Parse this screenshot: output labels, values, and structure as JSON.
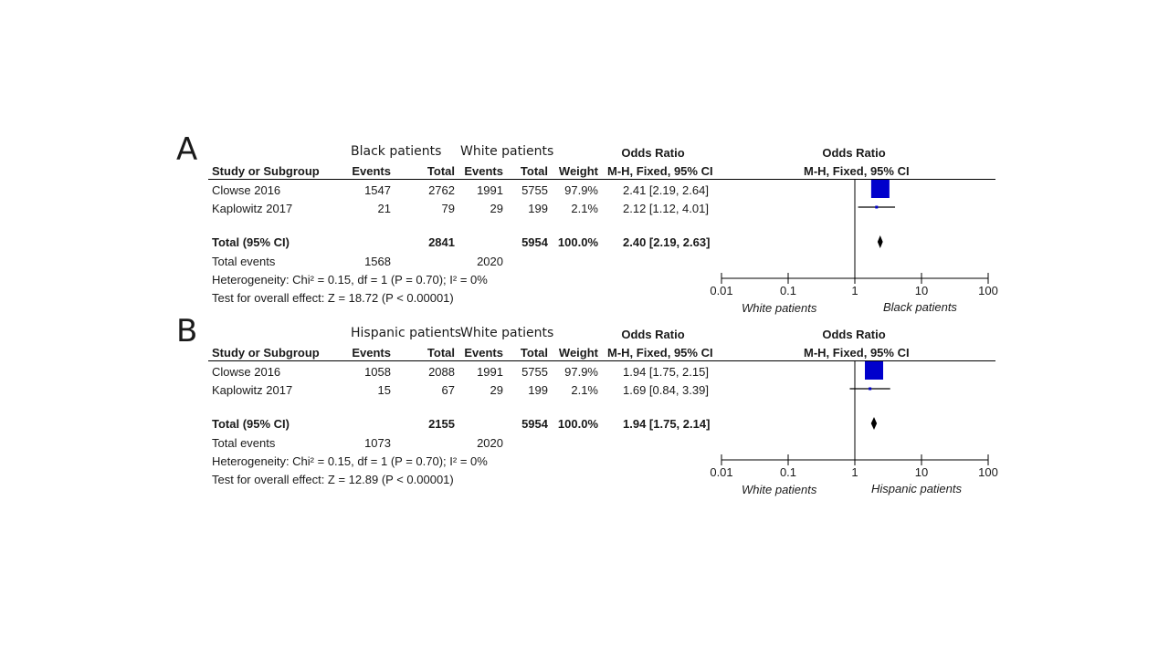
{
  "chart_data": [
    {
      "type": "forest",
      "panel_letter": "A",
      "group1_label": "Black patients",
      "group2_label": "White patients",
      "headers": {
        "study": "Study or Subgroup",
        "events1": "Events",
        "total1": "Total",
        "events2": "Events",
        "total2": "Total",
        "weight": "Weight",
        "or_title": "Odds Ratio",
        "or_method": "M-H, Fixed, 95% CI",
        "plot_title": "Odds Ratio",
        "plot_method": "M-H, Fixed, 95% CI"
      },
      "studies": [
        {
          "name": "Clowse 2016",
          "events1": "1547",
          "total1": "2762",
          "events2": "1991",
          "total2": "5755",
          "weight": "97.9%",
          "ci_text": "2.41 [2.19, 2.64]",
          "or": 2.41,
          "lo": 2.19,
          "hi": 2.64,
          "w": 97.9
        },
        {
          "name": "Kaplowitz 2017",
          "events1": "21",
          "total1": "79",
          "events2": "29",
          "total2": "199",
          "weight": "2.1%",
          "ci_text": "2.12 [1.12, 4.01]",
          "or": 2.12,
          "lo": 1.12,
          "hi": 4.01,
          "w": 2.1
        }
      ],
      "total": {
        "name": "Total (95% CI)",
        "total1": "2841",
        "total2": "5954",
        "weight": "100.0%",
        "ci_text": "2.40 [2.19, 2.63]",
        "or": 2.4,
        "lo": 2.19,
        "hi": 2.63
      },
      "total_events": {
        "label": "Total events",
        "events1": "1568",
        "events2": "2020"
      },
      "heterogeneity": "Heterogeneity: Chi² = 0.15, df = 1 (P = 0.70); I² = 0%",
      "overall_effect": "Test for overall effect: Z = 18.72 (P < 0.00001)",
      "axis": {
        "scale": "log",
        "ticks": [
          "0.01",
          "0.1",
          "1",
          "10",
          "100"
        ],
        "tick_values": [
          0.01,
          0.1,
          1,
          10,
          100
        ],
        "xlim": [
          0.01,
          100
        ]
      },
      "favours_left": "White patients",
      "favours_right": "Black patients"
    },
    {
      "type": "forest",
      "panel_letter": "B",
      "group1_label": "Hispanic patients",
      "group2_label": "White patients",
      "headers": {
        "study": "Study or Subgroup",
        "events1": "Events",
        "total1": "Total",
        "events2": "Events",
        "total2": "Total",
        "weight": "Weight",
        "or_title": "Odds Ratio",
        "or_method": "M-H, Fixed, 95% CI",
        "plot_title": "Odds Ratio",
        "plot_method": "M-H, Fixed, 95% CI"
      },
      "studies": [
        {
          "name": "Clowse 2016",
          "events1": "1058",
          "total1": "2088",
          "events2": "1991",
          "total2": "5755",
          "weight": "97.9%",
          "ci_text": "1.94 [1.75, 2.15]",
          "or": 1.94,
          "lo": 1.75,
          "hi": 2.15,
          "w": 97.9
        },
        {
          "name": "Kaplowitz 2017",
          "events1": "15",
          "total1": "67",
          "events2": "29",
          "total2": "199",
          "weight": "2.1%",
          "ci_text": "1.69 [0.84, 3.39]",
          "or": 1.69,
          "lo": 0.84,
          "hi": 3.39,
          "w": 2.1
        }
      ],
      "total": {
        "name": "Total (95% CI)",
        "total1": "2155",
        "total2": "5954",
        "weight": "100.0%",
        "ci_text": "1.94 [1.75, 2.14]",
        "or": 1.94,
        "lo": 1.75,
        "hi": 2.14
      },
      "total_events": {
        "label": "Total events",
        "events1": "1073",
        "events2": "2020"
      },
      "heterogeneity": "Heterogeneity: Chi² = 0.15, df = 1 (P = 0.70); I² = 0%",
      "overall_effect": "Test for overall effect: Z = 12.89 (P < 0.00001)",
      "axis": {
        "scale": "log",
        "ticks": [
          "0.01",
          "0.1",
          "1",
          "10",
          "100"
        ],
        "tick_values": [
          0.01,
          0.1,
          1,
          10,
          100
        ],
        "xlim": [
          0.01,
          100
        ]
      },
      "favours_left": "White patients",
      "favours_right": "Hispanic patients"
    }
  ],
  "colors": {
    "marker": "#0000cc",
    "text": "#1a1a1a",
    "line": "#000000"
  }
}
